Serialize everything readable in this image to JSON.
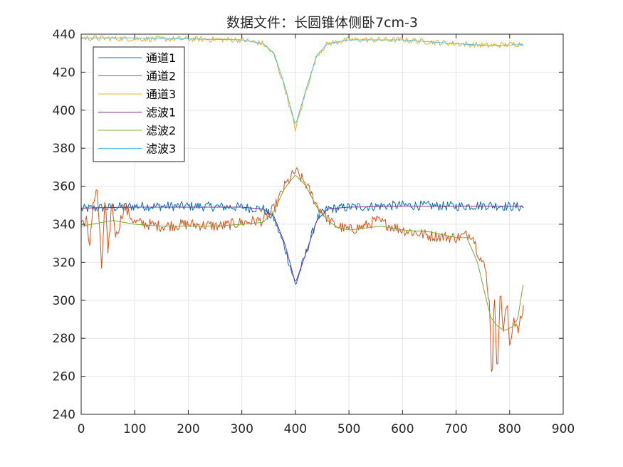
{
  "chart_data": {
    "type": "line",
    "title": "数据文件：长圆锥体侧卧7cm-3",
    "xlabel": "",
    "ylabel": "",
    "xlim": [
      0,
      900
    ],
    "ylim": [
      240,
      440
    ],
    "xticks": [
      0,
      100,
      200,
      300,
      400,
      500,
      600,
      700,
      800,
      900
    ],
    "yticks": [
      240,
      260,
      280,
      300,
      320,
      340,
      360,
      380,
      400,
      420,
      440
    ],
    "grid": true,
    "legend_position": "top-left",
    "series": [
      {
        "name": "通道1",
        "color": "#0072BD",
        "noise": 2.5,
        "points": [
          [
            0,
            348
          ],
          [
            100,
            349.5
          ],
          [
            200,
            349.5
          ],
          [
            300,
            349
          ],
          [
            340,
            348
          ],
          [
            360,
            343
          ],
          [
            380,
            328
          ],
          [
            400,
            308
          ],
          [
            420,
            325
          ],
          [
            440,
            343
          ],
          [
            460,
            348
          ],
          [
            500,
            349
          ],
          [
            600,
            350
          ],
          [
            700,
            349.5
          ],
          [
            760,
            350
          ],
          [
            826,
            349
          ]
        ]
      },
      {
        "name": "通道2",
        "color": "#D95319",
        "noise": 3,
        "points": [
          [
            0,
            341
          ],
          [
            10,
            342
          ],
          [
            15,
            326
          ],
          [
            22,
            351
          ],
          [
            30,
            358
          ],
          [
            38,
            317
          ],
          [
            45,
            355
          ],
          [
            50,
            322
          ],
          [
            57,
            352
          ],
          [
            65,
            333
          ],
          [
            80,
            349
          ],
          [
            100,
            341
          ],
          [
            150,
            339
          ],
          [
            200,
            340
          ],
          [
            260,
            339
          ],
          [
            300,
            341
          ],
          [
            340,
            342
          ],
          [
            360,
            348
          ],
          [
            380,
            360
          ],
          [
            400,
            368
          ],
          [
            420,
            361
          ],
          [
            440,
            350
          ],
          [
            470,
            340
          ],
          [
            500,
            337
          ],
          [
            530,
            339
          ],
          [
            550,
            342
          ],
          [
            600,
            337
          ],
          [
            650,
            334
          ],
          [
            700,
            333
          ],
          [
            715,
            334
          ],
          [
            730,
            335
          ],
          [
            740,
            326
          ],
          [
            755,
            316
          ],
          [
            763,
            296
          ],
          [
            767,
            253
          ],
          [
            771,
            305
          ],
          [
            777,
            262
          ],
          [
            783,
            307
          ],
          [
            788,
            284
          ],
          [
            795,
            299
          ],
          [
            800,
            276
          ],
          [
            808,
            291
          ],
          [
            815,
            283
          ],
          [
            826,
            296
          ]
        ]
      },
      {
        "name": "通道3",
        "color": "#EDB120",
        "noise": 1.5,
        "points": [
          [
            0,
            438
          ],
          [
            100,
            437.5
          ],
          [
            200,
            437.5
          ],
          [
            300,
            437
          ],
          [
            340,
            435
          ],
          [
            360,
            429
          ],
          [
            380,
            412
          ],
          [
            400,
            390
          ],
          [
            420,
            410
          ],
          [
            440,
            429
          ],
          [
            460,
            435
          ],
          [
            500,
            437
          ],
          [
            600,
            437
          ],
          [
            700,
            435
          ],
          [
            760,
            434
          ],
          [
            826,
            435
          ]
        ]
      },
      {
        "name": "滤波1",
        "color": "#7E2F8E",
        "noise": 0,
        "points": [
          [
            0,
            348.5
          ],
          [
            100,
            349
          ],
          [
            200,
            349
          ],
          [
            300,
            349
          ],
          [
            340,
            348
          ],
          [
            360,
            344
          ],
          [
            380,
            330
          ],
          [
            400,
            309
          ],
          [
            420,
            325
          ],
          [
            440,
            342
          ],
          [
            460,
            348
          ],
          [
            500,
            349
          ],
          [
            600,
            349.5
          ],
          [
            700,
            349.5
          ],
          [
            826,
            349.5
          ]
        ]
      },
      {
        "name": "滤波2",
        "color": "#77AC30",
        "noise": 0,
        "points": [
          [
            0,
            339
          ],
          [
            20,
            340
          ],
          [
            60,
            342
          ],
          [
            100,
            340
          ],
          [
            150,
            339
          ],
          [
            200,
            339
          ],
          [
            250,
            339
          ],
          [
            300,
            340
          ],
          [
            340,
            341
          ],
          [
            360,
            347
          ],
          [
            380,
            359
          ],
          [
            400,
            366
          ],
          [
            420,
            360
          ],
          [
            440,
            349
          ],
          [
            460,
            342
          ],
          [
            480,
            338
          ],
          [
            500,
            337
          ],
          [
            530,
            338
          ],
          [
            560,
            339
          ],
          [
            600,
            337
          ],
          [
            650,
            336
          ],
          [
            700,
            333
          ],
          [
            720,
            333
          ],
          [
            740,
            320
          ],
          [
            755,
            302
          ],
          [
            765,
            291
          ],
          [
            775,
            287
          ],
          [
            790,
            284
          ],
          [
            805,
            286
          ],
          [
            815,
            290
          ],
          [
            826,
            310
          ]
        ]
      },
      {
        "name": "滤波3",
        "color": "#4DBEEE",
        "noise": 0,
        "points": [
          [
            0,
            438
          ],
          [
            100,
            438
          ],
          [
            200,
            437.5
          ],
          [
            300,
            437
          ],
          [
            340,
            435
          ],
          [
            360,
            430
          ],
          [
            380,
            413
          ],
          [
            400,
            392
          ],
          [
            420,
            411
          ],
          [
            440,
            429
          ],
          [
            460,
            435
          ],
          [
            500,
            437
          ],
          [
            600,
            437
          ],
          [
            700,
            435
          ],
          [
            760,
            434
          ],
          [
            826,
            434.5
          ]
        ]
      }
    ]
  }
}
